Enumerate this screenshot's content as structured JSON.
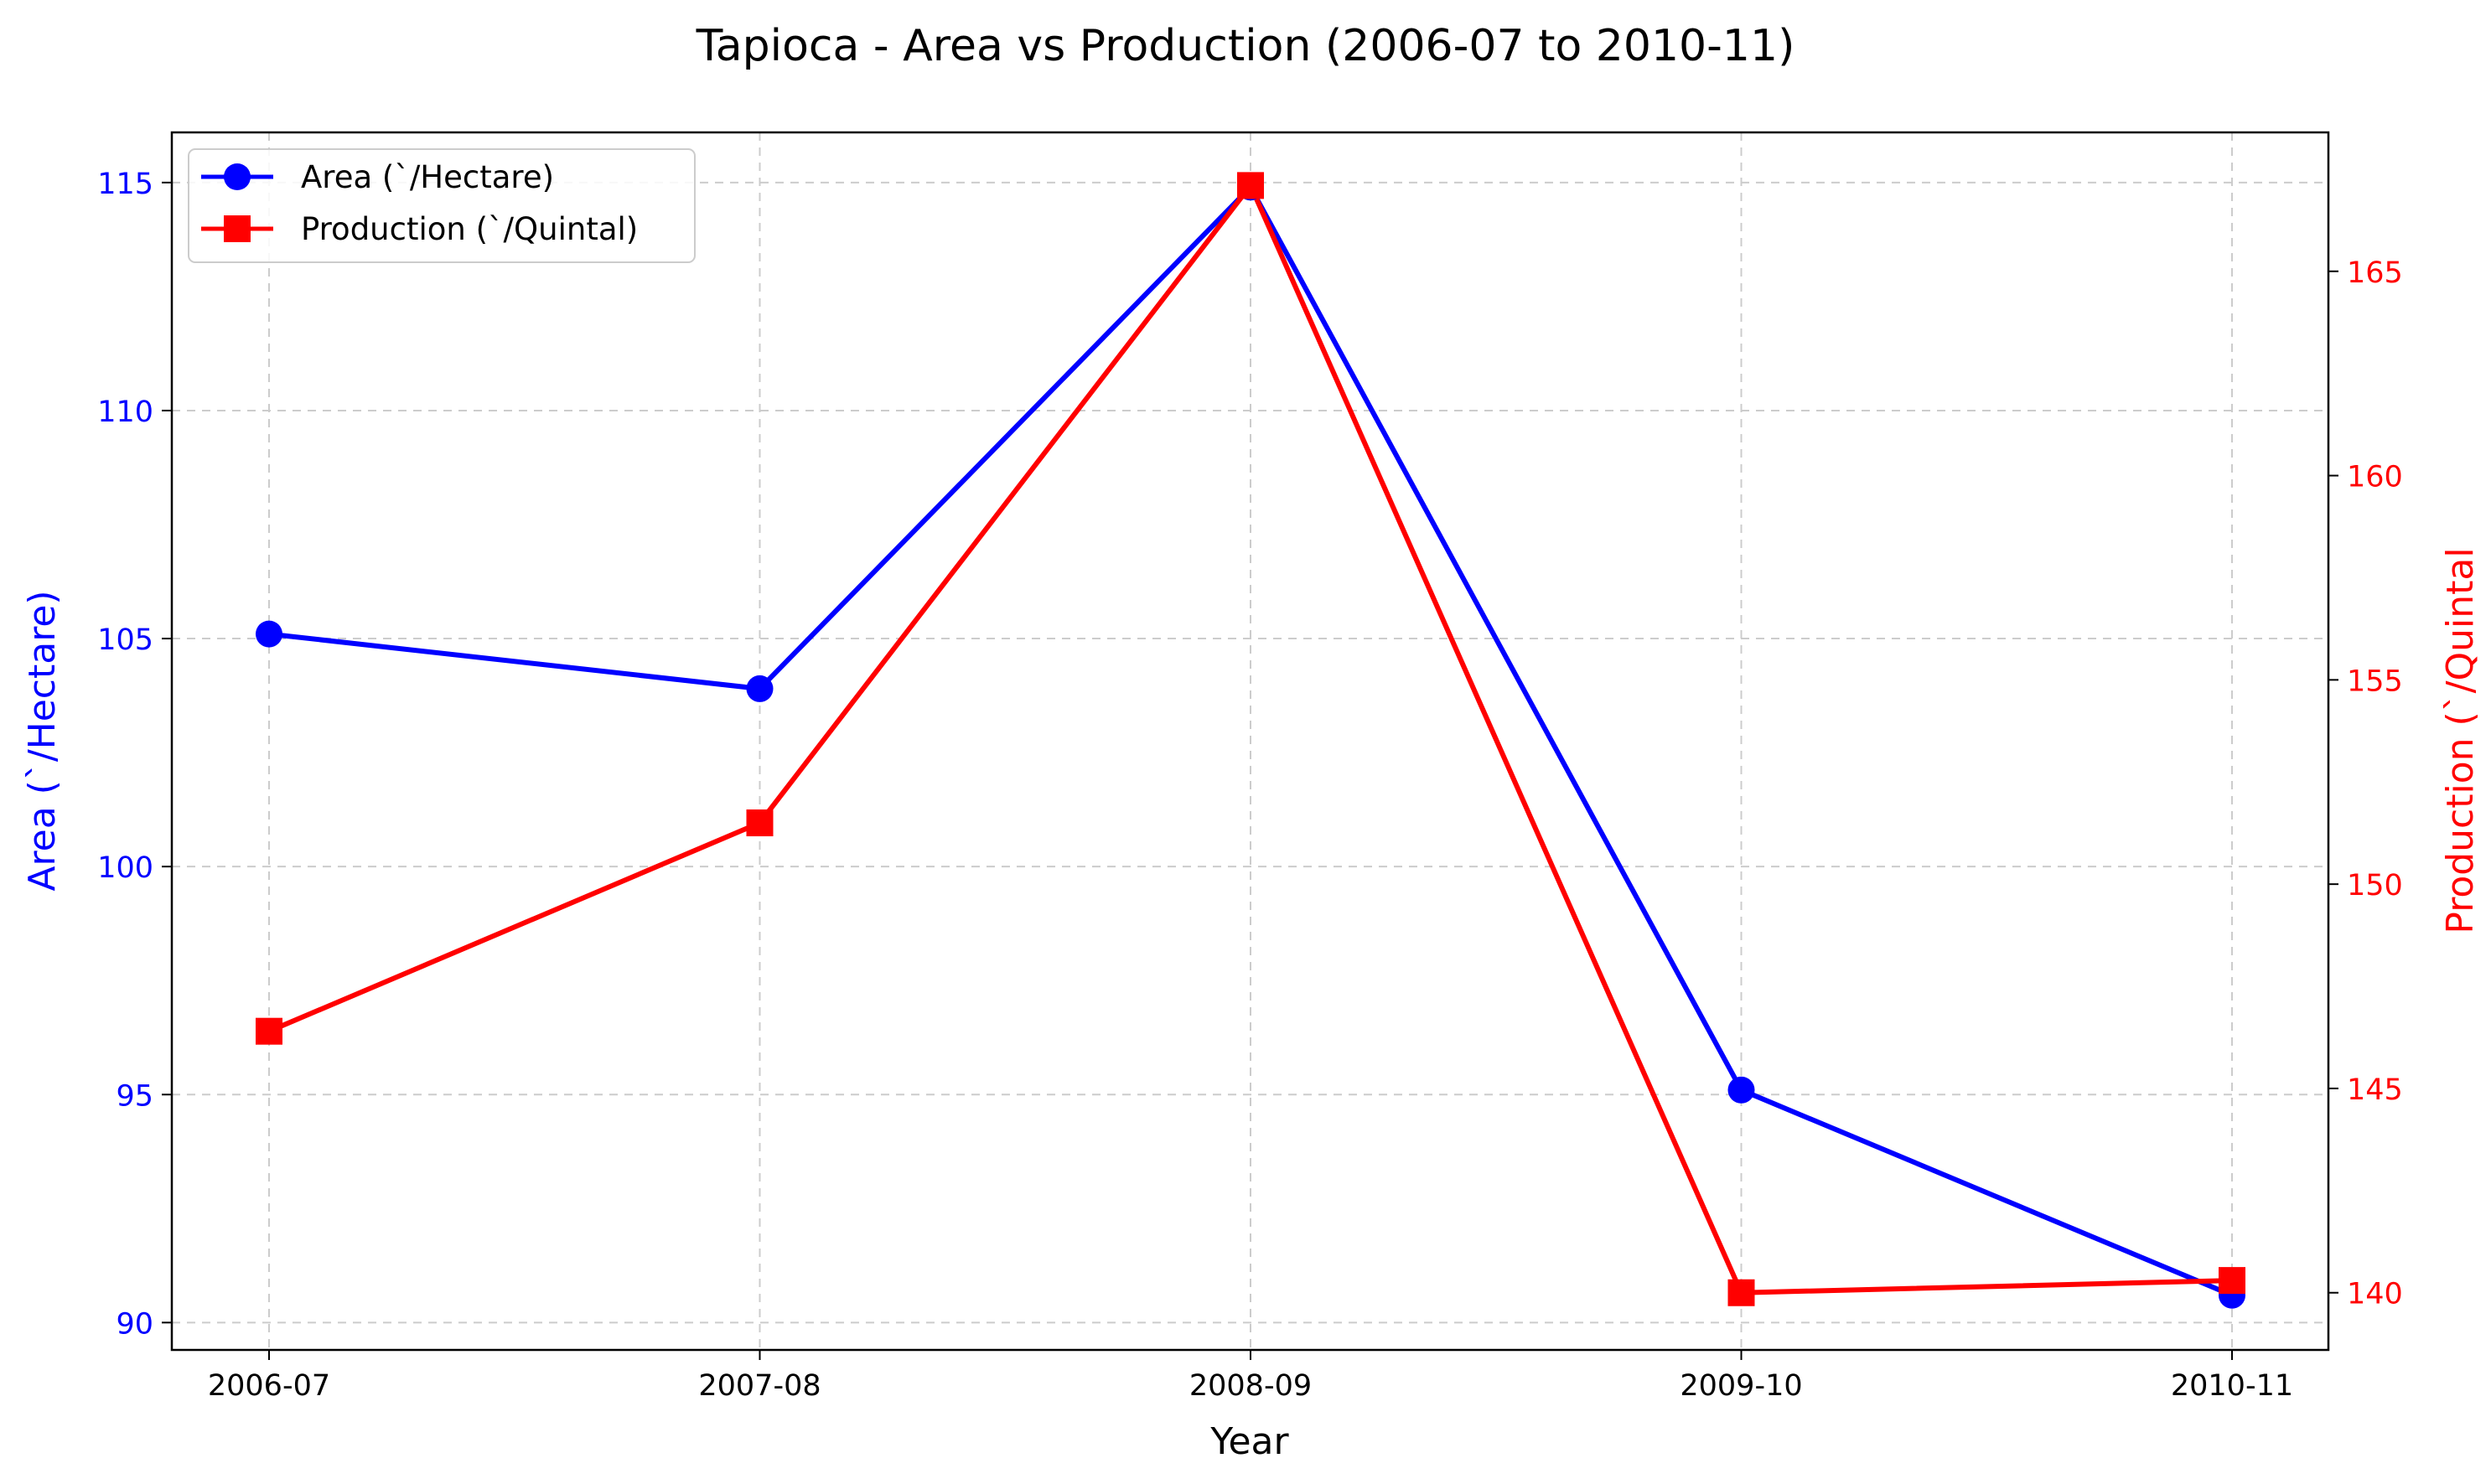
{
  "chart_data": {
    "type": "line",
    "title": "Tapioca - Area vs Production (2006-07 to 2010-11)",
    "xlabel": "Year",
    "ylabel_left": "Area (`/Hectare)",
    "ylabel_right": "Production (`/Quintal",
    "categories": [
      "2006-07",
      "2007-08",
      "2008-09",
      "2009-10",
      "2010-11"
    ],
    "left_axis": {
      "ylim": [
        89.4,
        116.1
      ],
      "ticks": [
        90,
        95,
        100,
        105,
        110,
        115
      ],
      "color": "#0000ff"
    },
    "right_axis": {
      "ylim": [
        138.6,
        168.4
      ],
      "ticks": [
        140,
        145,
        150,
        155,
        160,
        165
      ],
      "color": "#ff0000"
    },
    "series": [
      {
        "name": "Area (`/Hectare)",
        "axis": "left",
        "color": "#0000ff",
        "marker": "circle",
        "values": [
          105.1,
          103.9,
          114.9,
          95.1,
          90.6
        ]
      },
      {
        "name": "Production (`/Quintal)",
        "axis": "right",
        "color": "#ff0000",
        "marker": "square",
        "values": [
          146.4,
          151.5,
          167.1,
          140.0,
          140.3
        ]
      }
    ],
    "grid": true,
    "legend": "upper-left"
  }
}
